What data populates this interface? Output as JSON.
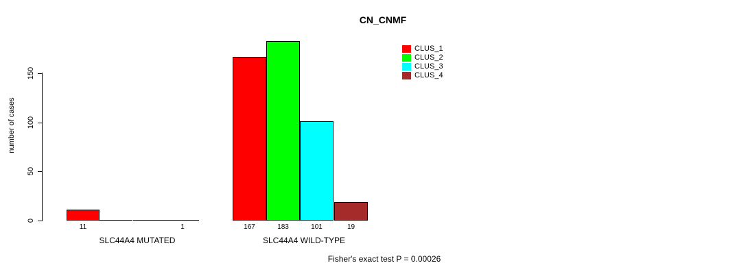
{
  "title": "CN_CNMF",
  "chart_data": {
    "type": "bar",
    "title": "CN_CNMF",
    "xlabel": "",
    "ylabel": "number of cases",
    "ylim": [
      0,
      190
    ],
    "yticks": [
      0,
      50,
      100,
      150
    ],
    "grid": false,
    "legend_position": "top-right",
    "categories": [
      "SLC44A4 MUTATED",
      "SLC44A4 WILD-TYPE"
    ],
    "series": [
      {
        "name": "CLUS_1",
        "color": "#FF0000",
        "values": [
          11,
          167
        ]
      },
      {
        "name": "CLUS_2",
        "color": "#00FF00",
        "values": [
          0,
          183
        ]
      },
      {
        "name": "CLUS_3",
        "color": "#00FFFF",
        "values": [
          0,
          101
        ]
      },
      {
        "name": "CLUS_4",
        "color": "#A52A2A",
        "values": [
          1,
          19
        ]
      }
    ],
    "bar_value_labels": {
      "show": true,
      "hide_zeros": true
    },
    "annotation": "Fisher's exact test P = 0.00026"
  }
}
